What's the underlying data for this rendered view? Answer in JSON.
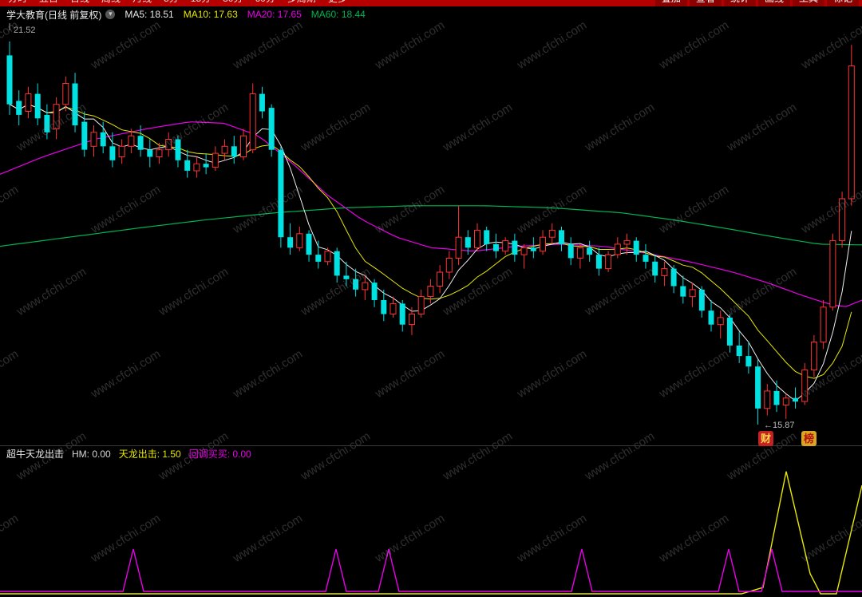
{
  "topbar": {
    "left_items": [
      "分时",
      "五日",
      "日线",
      "周线",
      "月线",
      "5分",
      "15分",
      "30分",
      "60分",
      "多周期",
      "更多"
    ],
    "right_items": [
      "叠加",
      "查看",
      "统计",
      "画线",
      "工具",
      "标记"
    ]
  },
  "header": {
    "title": "学大教育(日线 前复权)",
    "ma_items": [
      {
        "text": "MA5: 18.51",
        "color": "#e8e8e8"
      },
      {
        "text": "MA10: 17.63",
        "color": "#e8e800"
      },
      {
        "text": "MA20: 17.65",
        "color": "#e800e8"
      },
      {
        "text": "MA60: 18.44",
        "color": "#00b450"
      }
    ]
  },
  "main_chart": {
    "high_label": "21.52",
    "low_label": "←15.87",
    "badges": [
      {
        "text": "财"
      },
      {
        "text": "榜"
      }
    ]
  },
  "indicator": {
    "title": "超牛天龙出击",
    "fields": [
      {
        "text": "HM: 0.00",
        "color": "#d8d8d8"
      },
      {
        "text": "天龙出击: 1.50",
        "color": "#e8e800"
      },
      {
        "text": "回调买买: 0.00",
        "color": "#e800e8"
      }
    ]
  },
  "watermark": {
    "text": "www.cfchi.com"
  },
  "chart_data": {
    "type": "candlestick",
    "title": "学大教育 日线 前复权",
    "y_high": 21.52,
    "y_low": 15.87,
    "colors": {
      "up": "#ff3232",
      "down": "#00e2e2",
      "ma5": "#f0f0f0",
      "ma10": "#e8e800",
      "ma20": "#e800e8",
      "ma60": "#00b450"
    },
    "candles": [
      [
        21.15,
        21.35,
        20.3,
        20.45
      ],
      [
        20.5,
        20.65,
        20.15,
        20.3
      ],
      [
        20.35,
        20.7,
        20.25,
        20.6
      ],
      [
        20.6,
        20.75,
        20.15,
        20.25
      ],
      [
        20.3,
        20.45,
        19.95,
        20.05
      ],
      [
        20.1,
        20.55,
        19.95,
        20.45
      ],
      [
        20.45,
        20.85,
        20.35,
        20.75
      ],
      [
        20.75,
        20.9,
        20.05,
        20.15
      ],
      [
        20.2,
        20.35,
        19.7,
        19.8
      ],
      [
        19.85,
        20.15,
        19.7,
        20.05
      ],
      [
        20.05,
        20.2,
        19.75,
        19.85
      ],
      [
        19.85,
        20.05,
        19.55,
        19.65
      ],
      [
        19.7,
        19.95,
        19.6,
        19.85
      ],
      [
        19.85,
        20.1,
        19.75,
        20.0
      ],
      [
        20.0,
        20.15,
        19.7,
        19.8
      ],
      [
        19.8,
        19.95,
        19.55,
        19.7
      ],
      [
        19.7,
        19.9,
        19.6,
        19.8
      ],
      [
        19.8,
        20.05,
        19.7,
        19.95
      ],
      [
        19.95,
        20.0,
        19.55,
        19.65
      ],
      [
        19.65,
        19.8,
        19.4,
        19.5
      ],
      [
        19.5,
        19.7,
        19.4,
        19.6
      ],
      [
        19.6,
        19.75,
        19.45,
        19.55
      ],
      [
        19.55,
        19.85,
        19.5,
        19.75
      ],
      [
        19.75,
        19.95,
        19.65,
        19.85
      ],
      [
        19.85,
        20.0,
        19.6,
        19.7
      ],
      [
        19.7,
        20.1,
        19.65,
        20.0
      ],
      [
        19.8,
        20.75,
        19.75,
        20.6
      ],
      [
        20.6,
        20.7,
        20.25,
        20.35
      ],
      [
        20.4,
        20.45,
        19.7,
        19.8
      ],
      [
        19.8,
        19.85,
        18.4,
        18.55
      ],
      [
        18.55,
        18.75,
        18.3,
        18.4
      ],
      [
        18.4,
        18.7,
        18.35,
        18.6
      ],
      [
        18.6,
        18.65,
        18.2,
        18.3
      ],
      [
        18.3,
        18.5,
        18.1,
        18.2
      ],
      [
        18.2,
        18.4,
        18.15,
        18.35
      ],
      [
        18.35,
        18.4,
        17.9,
        18.0
      ],
      [
        18.0,
        18.2,
        17.85,
        17.95
      ],
      [
        17.95,
        18.1,
        17.7,
        17.8
      ],
      [
        17.8,
        18.0,
        17.65,
        17.9
      ],
      [
        17.9,
        17.95,
        17.55,
        17.65
      ],
      [
        17.65,
        17.8,
        17.35,
        17.45
      ],
      [
        17.45,
        17.7,
        17.4,
        17.6
      ],
      [
        17.6,
        17.65,
        17.2,
        17.3
      ],
      [
        17.3,
        17.55,
        17.15,
        17.45
      ],
      [
        17.45,
        17.8,
        17.4,
        17.7
      ],
      [
        17.7,
        17.95,
        17.6,
        17.85
      ],
      [
        17.85,
        18.15,
        17.75,
        18.05
      ],
      [
        18.05,
        18.35,
        17.95,
        18.25
      ],
      [
        18.25,
        19.0,
        18.15,
        18.55
      ],
      [
        18.55,
        18.65,
        18.3,
        18.4
      ],
      [
        18.4,
        18.75,
        18.35,
        18.65
      ],
      [
        18.65,
        18.7,
        18.35,
        18.45
      ],
      [
        18.45,
        18.6,
        18.25,
        18.35
      ],
      [
        18.35,
        18.55,
        18.3,
        18.5
      ],
      [
        18.5,
        18.6,
        18.2,
        18.3
      ],
      [
        18.3,
        18.45,
        18.1,
        18.4
      ],
      [
        18.4,
        18.55,
        18.25,
        18.35
      ],
      [
        18.35,
        18.65,
        18.3,
        18.55
      ],
      [
        18.55,
        18.75,
        18.45,
        18.65
      ],
      [
        18.65,
        18.7,
        18.35,
        18.45
      ],
      [
        18.45,
        18.55,
        18.15,
        18.25
      ],
      [
        18.25,
        18.45,
        18.1,
        18.4
      ],
      [
        18.4,
        18.5,
        18.2,
        18.3
      ],
      [
        18.3,
        18.4,
        18.0,
        18.1
      ],
      [
        18.1,
        18.35,
        18.05,
        18.3
      ],
      [
        18.3,
        18.55,
        18.25,
        18.45
      ],
      [
        18.45,
        18.6,
        18.3,
        18.5
      ],
      [
        18.5,
        18.55,
        18.2,
        18.3
      ],
      [
        18.3,
        18.45,
        18.1,
        18.2
      ],
      [
        18.2,
        18.3,
        17.9,
        18.0
      ],
      [
        18.0,
        18.2,
        17.85,
        18.1
      ],
      [
        18.1,
        18.15,
        17.75,
        17.85
      ],
      [
        17.85,
        18.0,
        17.6,
        17.7
      ],
      [
        17.7,
        17.9,
        17.55,
        17.8
      ],
      [
        17.8,
        17.85,
        17.4,
        17.5
      ],
      [
        17.5,
        17.65,
        17.2,
        17.3
      ],
      [
        17.3,
        17.5,
        17.1,
        17.4
      ],
      [
        17.4,
        17.45,
        16.9,
        17.0
      ],
      [
        17.0,
        17.2,
        16.75,
        16.85
      ],
      [
        16.85,
        17.05,
        16.6,
        16.7
      ],
      [
        16.7,
        16.8,
        15.87,
        16.1
      ],
      [
        16.1,
        16.45,
        16.0,
        16.35
      ],
      [
        16.35,
        16.5,
        16.05,
        16.15
      ],
      [
        16.15,
        16.3,
        15.95,
        16.25
      ],
      [
        16.25,
        16.4,
        16.1,
        16.2
      ],
      [
        16.2,
        16.75,
        16.15,
        16.65
      ],
      [
        16.65,
        17.15,
        16.55,
        17.05
      ],
      [
        17.05,
        17.65,
        16.95,
        17.55
      ],
      [
        17.55,
        18.6,
        17.5,
        18.5
      ],
      [
        18.5,
        19.2,
        18.4,
        19.1
      ],
      [
        19.1,
        21.3,
        19.0,
        21.0
      ]
    ],
    "ma20_points": [
      [
        0,
        19.45
      ],
      [
        0.05,
        19.7
      ],
      [
        0.11,
        19.95
      ],
      [
        0.17,
        20.1
      ],
      [
        0.22,
        20.2
      ],
      [
        0.26,
        20.18
      ],
      [
        0.3,
        20.0
      ],
      [
        0.34,
        19.6
      ],
      [
        0.38,
        19.15
      ],
      [
        0.42,
        18.8
      ],
      [
        0.46,
        18.55
      ],
      [
        0.5,
        18.4
      ],
      [
        0.55,
        18.35
      ],
      [
        0.6,
        18.42
      ],
      [
        0.65,
        18.45
      ],
      [
        0.7,
        18.42
      ],
      [
        0.75,
        18.32
      ],
      [
        0.8,
        18.2
      ],
      [
        0.85,
        18.05
      ],
      [
        0.89,
        17.9
      ],
      [
        0.93,
        17.72
      ],
      [
        0.96,
        17.6
      ],
      [
        0.98,
        17.55
      ],
      [
        1,
        17.65
      ]
    ],
    "ma60_points": [
      [
        0,
        18.42
      ],
      [
        0.08,
        18.55
      ],
      [
        0.16,
        18.68
      ],
      [
        0.24,
        18.8
      ],
      [
        0.32,
        18.9
      ],
      [
        0.4,
        18.97
      ],
      [
        0.48,
        19.0
      ],
      [
        0.56,
        19.0
      ],
      [
        0.64,
        18.97
      ],
      [
        0.72,
        18.9
      ],
      [
        0.78,
        18.8
      ],
      [
        0.84,
        18.68
      ],
      [
        0.9,
        18.55
      ],
      [
        0.95,
        18.45
      ],
      [
        1,
        18.44
      ]
    ],
    "indicator_panel": {
      "range": [
        0,
        5
      ],
      "spike_value": 1.5,
      "magenta_spike_x": [
        0.155,
        0.39,
        0.451,
        0.675,
        0.845,
        0.895
      ],
      "yellow_line": [
        [
          0,
          0
        ],
        [
          0.86,
          0
        ],
        [
          0.885,
          0.25
        ],
        [
          0.912,
          4.85
        ],
        [
          0.94,
          0.8
        ],
        [
          0.952,
          0
        ],
        [
          0.97,
          0
        ],
        [
          1,
          4.3
        ]
      ]
    }
  }
}
